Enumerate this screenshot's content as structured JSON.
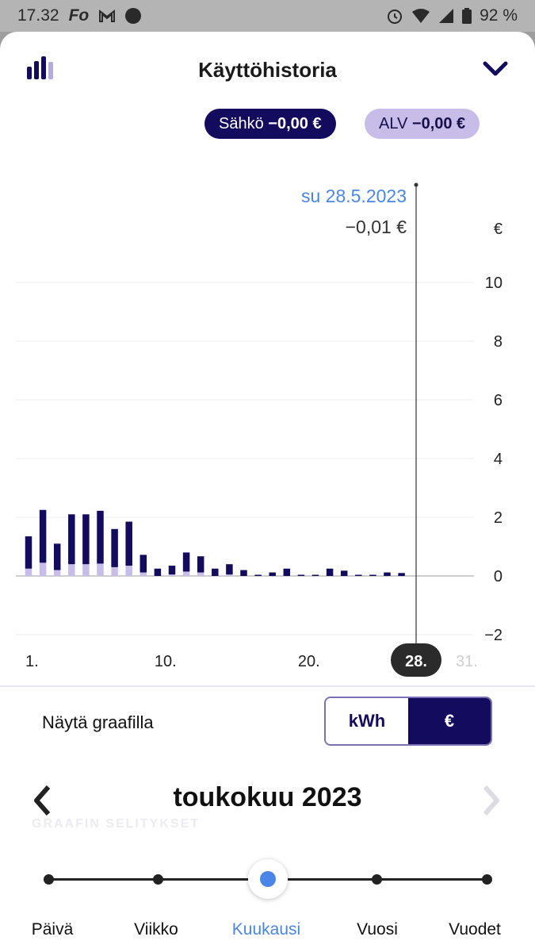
{
  "status_bar": {
    "time": "17.32",
    "app_icons": [
      "Fo",
      "gmail-icon",
      "dot-icon"
    ],
    "battery": "92 %"
  },
  "header": {
    "title": "Käyttöhistoria"
  },
  "pills": {
    "sahko_label": "Sähkö",
    "sahko_value": "−0,00 €",
    "alv_label": "ALV",
    "alv_value": "−0,00 €"
  },
  "chart_data": {
    "type": "bar",
    "stacked": true,
    "selected_date": "su 28.5.2023",
    "selected_value": "−0,01 €",
    "y_unit": "€",
    "ylim": [
      -2,
      10
    ],
    "y_ticks": [
      "10",
      "8",
      "6",
      "4",
      "2",
      "0",
      "−2"
    ],
    "x_ticks": [
      {
        "day": 1,
        "label": "1."
      },
      {
        "day": 10,
        "label": "10."
      },
      {
        "day": 20,
        "label": "20."
      },
      {
        "day": 31,
        "label": "31."
      }
    ],
    "selected_day": 28,
    "selected_day_label": "28.",
    "series": [
      {
        "name": "Sähkö",
        "color": "#130c5e",
        "values": [
          1.1,
          1.8,
          0.9,
          1.7,
          1.7,
          1.8,
          1.3,
          1.5,
          0.6,
          0.25,
          0.3,
          0.65,
          0.55,
          0.25,
          0.35,
          0.2,
          0.03,
          0.12,
          0.25,
          0.03,
          0.03,
          0.25,
          0.18,
          0.03,
          0.03,
          0.12,
          0.1,
          0.0,
          0.0,
          0.0,
          0.0
        ]
      },
      {
        "name": "ALV",
        "color": "#c7bde8",
        "values": [
          0.25,
          0.45,
          0.2,
          0.4,
          0.4,
          0.42,
          0.3,
          0.35,
          0.12,
          0.0,
          0.05,
          0.15,
          0.12,
          0.0,
          0.05,
          0.0,
          0.0,
          0.0,
          0.0,
          0.0,
          0.0,
          0.0,
          0.0,
          0.0,
          0.0,
          0.0,
          0.0,
          0.0,
          0.0,
          0.0,
          0.0
        ]
      }
    ]
  },
  "controls": {
    "show_on_chart_label": "Näytä graafilla",
    "unit_kwh": "kWh",
    "unit_eur": "€",
    "selected_unit": "€"
  },
  "month_nav": {
    "month": "toukokuu 2023"
  },
  "ghost_text": "GRAAFIN SELITYKSET",
  "period": {
    "options": [
      "Päivä",
      "Viikko",
      "Kuukausi",
      "Vuosi",
      "Vuodet"
    ],
    "selected": "Kuukausi"
  },
  "colors": {
    "primary": "#130c5e",
    "alv": "#c7bde8",
    "accent": "#4a86e8"
  }
}
